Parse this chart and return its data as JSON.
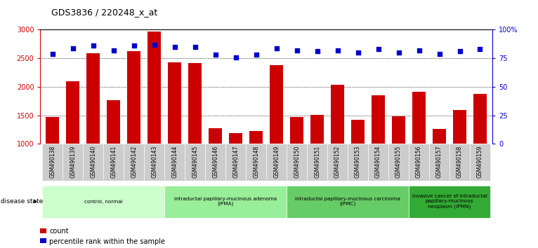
{
  "title": "GDS3836 / 220248_x_at",
  "samples": [
    "GSM490138",
    "GSM490139",
    "GSM490140",
    "GSM490141",
    "GSM490142",
    "GSM490143",
    "GSM490144",
    "GSM490145",
    "GSM490146",
    "GSM490147",
    "GSM490148",
    "GSM490149",
    "GSM490150",
    "GSM490151",
    "GSM490152",
    "GSM490153",
    "GSM490154",
    "GSM490155",
    "GSM490156",
    "GSM490157",
    "GSM490158",
    "GSM490159"
  ],
  "counts": [
    1470,
    2100,
    2590,
    1760,
    2630,
    2970,
    2430,
    2420,
    1270,
    1185,
    1220,
    2380,
    1465,
    1510,
    2030,
    1420,
    1850,
    1480,
    1910,
    1260,
    1590,
    1880
  ],
  "percentile_ranks": [
    79,
    84,
    86,
    82,
    86,
    87,
    85,
    85,
    78,
    76,
    78,
    84,
    82,
    81,
    82,
    80,
    83,
    80,
    82,
    79,
    81,
    83
  ],
  "bar_color": "#cc0000",
  "dot_color": "#0000cc",
  "ylim_left": [
    1000,
    3000
  ],
  "ylim_right": [
    0,
    100
  ],
  "yticks_left": [
    1000,
    1500,
    2000,
    2500,
    3000
  ],
  "yticks_right": [
    0,
    25,
    50,
    75,
    100
  ],
  "groups": [
    {
      "label": "control, normal",
      "start": 0,
      "end": 6,
      "color": "#ccffcc"
    },
    {
      "label": "intraductal papillary-mucinous adenoma\n(IPMA)",
      "start": 6,
      "end": 12,
      "color": "#99ee99"
    },
    {
      "label": "intraductal papillary-mucinous carcinoma\n(IPMC)",
      "start": 12,
      "end": 18,
      "color": "#66cc66"
    },
    {
      "label": "invasive cancer of intraductal\npapillary-mucinous\nneoplasm (IPMN)",
      "start": 18,
      "end": 22,
      "color": "#33aa33"
    }
  ],
  "disease_state_label": "disease state",
  "legend_count_label": "count",
  "legend_pct_label": "percentile rank within the sample",
  "background_color": "#ffffff",
  "tick_bg_color": "#cccccc",
  "grid_color": "#000000",
  "top_border_color": "#000000"
}
